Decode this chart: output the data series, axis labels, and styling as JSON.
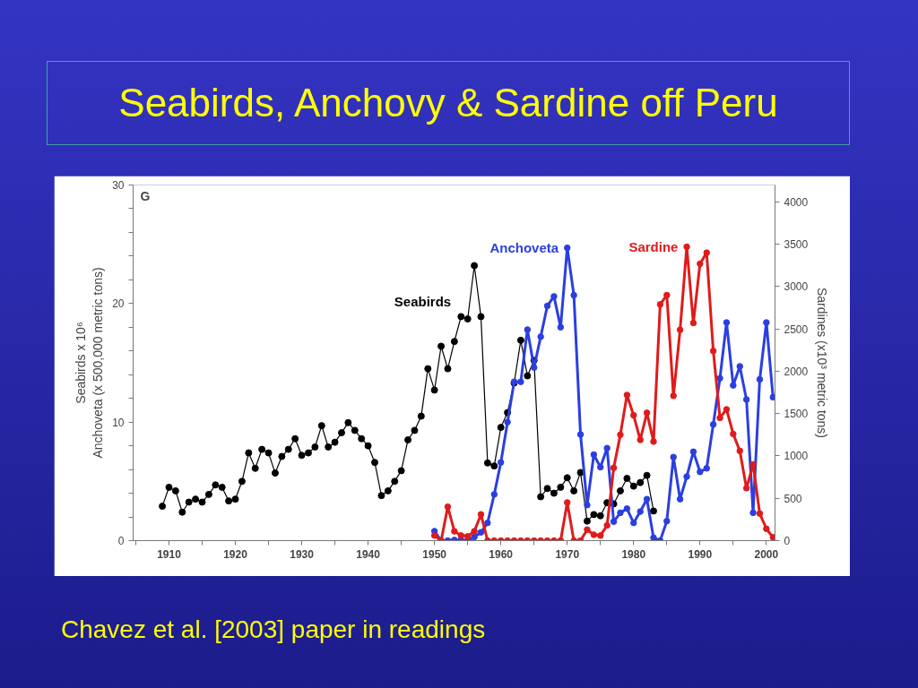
{
  "chart_data": {
    "type": "line",
    "title": "Seabirds, Anchovy & Sardine off Peru",
    "ylabel": "Seabirds x 10⁶\nAnchoveta (x 500,000 metric tons)",
    "y2label": "Sardines (x10³ metric tons)",
    "annotations": [
      "G",
      "Chavez et al. [2003] paper in readings"
    ],
    "xlim": [
      1904.6,
      2001.3
    ],
    "xticks": [
      {
        "value": 1905,
        "label": null
      },
      1910,
      {
        "value": 1915,
        "label": null
      },
      1920,
      {
        "value": 1925,
        "label": null
      },
      1930,
      {
        "value": 1935,
        "label": null
      },
      1940,
      {
        "value": 1945,
        "label": null
      },
      1950,
      {
        "value": 1955,
        "label": null
      },
      1960,
      {
        "value": 1965,
        "label": null
      },
      1970,
      {
        "value": 1975,
        "label": null
      },
      1980,
      {
        "value": 1985,
        "label": null
      },
      1990,
      {
        "value": 1995,
        "label": null
      },
      2000
    ],
    "ylim": [
      0,
      30
    ],
    "yticks": [
      0,
      {
        "value": 2,
        "label": null
      },
      {
        "value": 4,
        "label": null
      },
      {
        "value": 6,
        "label": null
      },
      {
        "value": 8,
        "label": null
      },
      10,
      {
        "value": 12,
        "label": null
      },
      {
        "value": 14,
        "label": null
      },
      {
        "value": 16,
        "label": null
      },
      {
        "value": 18,
        "label": null
      },
      20,
      {
        "value": 22,
        "label": null
      },
      {
        "value": 24,
        "label": null
      },
      {
        "value": 26,
        "label": null
      },
      {
        "value": 28,
        "label": null
      },
      30
    ],
    "y2lim": [
      0,
      4200
    ],
    "y2ticks": [
      0,
      500,
      1000,
      1500,
      2000,
      2500,
      3000,
      3500,
      4000
    ],
    "grid": false,
    "marker": "circle",
    "line_style": "solid",
    "series": [
      {
        "name": "Seabirds",
        "color": "#000000",
        "x": [
          1909,
          1910,
          1911,
          1912,
          1913,
          1914,
          1915,
          1916,
          1917,
          1918,
          1919,
          1920,
          1921,
          1922,
          1923,
          1924,
          1925,
          1926,
          1927,
          1928,
          1929,
          1930,
          1931,
          1932,
          1933,
          1934,
          1935,
          1936,
          1937,
          1938,
          1939,
          1940,
          1941,
          1942,
          1943,
          1944,
          1945,
          1946,
          1947,
          1948,
          1949,
          1950,
          1951,
          1952,
          1953,
          1954,
          1955,
          1956,
          1957,
          1958,
          1959,
          1960,
          1961,
          1962,
          1963,
          1964,
          1965,
          1966,
          1967,
          1968,
          1969,
          1970,
          1971,
          1972,
          1973,
          1974,
          1975,
          1976,
          1977,
          1978,
          1979,
          1980,
          1981,
          1982,
          1983
        ],
        "values": [
          2.9,
          4.5,
          4.2,
          2.4,
          3.25,
          3.5,
          3.25,
          3.9,
          4.7,
          4.5,
          3.35,
          3.5,
          5.0,
          7.4,
          6.1,
          7.7,
          7.4,
          5.7,
          7.1,
          7.7,
          8.6,
          7.2,
          7.4,
          7.9,
          9.7,
          7.9,
          8.3,
          9.1,
          9.95,
          9.3,
          8.6,
          8.0,
          6.6,
          3.8,
          4.2,
          5.0,
          5.9,
          8.5,
          9.3,
          10.5,
          14.5,
          12.7,
          16.4,
          14.5,
          16.8,
          18.9,
          18.7,
          23.2,
          18.9,
          6.55,
          6.3,
          9.55,
          10.8,
          13.3,
          16.9,
          13.9,
          15.2,
          3.7,
          4.4,
          4.0,
          4.5,
          5.3,
          4.2,
          5.75,
          1.65,
          2.2,
          2.1,
          3.2,
          3.1,
          4.2,
          5.25,
          4.6,
          4.9,
          5.5,
          2.5
        ]
      },
      {
        "name": "Anchoveta",
        "color": "#2b3fe0",
        "x": [
          1950,
          1951,
          1952,
          1953,
          1954,
          1955,
          1956,
          1957,
          1958,
          1959,
          1960,
          1961,
          1962,
          1963,
          1964,
          1965,
          1966,
          1967,
          1968,
          1969,
          1970,
          1971,
          1972,
          1973,
          1974,
          1975,
          1976,
          1977,
          1978,
          1979,
          1980,
          1981,
          1982,
          1983,
          1984,
          1985,
          1986,
          1987,
          1988,
          1989,
          1990,
          1991,
          1992,
          1993,
          1994,
          1995,
          1996,
          1997,
          1998,
          1999,
          2000,
          2001
        ],
        "values": [
          0.8,
          0,
          0,
          0.05,
          0.05,
          0,
          0.3,
          0.7,
          1.5,
          3.9,
          6.6,
          10.0,
          13.4,
          13.4,
          17.8,
          14.6,
          17.2,
          19.8,
          20.6,
          18.0,
          24.7,
          20.7,
          8.95,
          3.0,
          7.25,
          6.2,
          7.8,
          1.6,
          2.35,
          2.7,
          1.5,
          2.45,
          3.5,
          0.25,
          0,
          1.65,
          7.05,
          3.5,
          5.4,
          7.5,
          5.8,
          6.1,
          9.8,
          13.7,
          18.4,
          13.1,
          14.7,
          11.9,
          2.35,
          13.6,
          18.4,
          12.1
        ]
      },
      {
        "name": "Sardine",
        "color": "#e01b1b",
        "axis": "y2",
        "x": [
          1950,
          1951,
          1952,
          1953,
          1954,
          1955,
          1956,
          1957,
          1958,
          1959,
          1960,
          1961,
          1962,
          1963,
          1964,
          1965,
          1966,
          1967,
          1968,
          1969,
          1970,
          1971,
          1972,
          1973,
          1974,
          1975,
          1976,
          1977,
          1978,
          1979,
          1980,
          1981,
          1982,
          1983,
          1984,
          1985,
          1986,
          1987,
          1988,
          1989,
          1990,
          1991,
          1992,
          1993,
          1994,
          1995,
          1996,
          1997,
          1998,
          1999,
          2000,
          2001
        ],
        "values": [
          60,
          0,
          400,
          110,
          60,
          50,
          110,
          310,
          0,
          0,
          0,
          0,
          0,
          0,
          0,
          0,
          0,
          0,
          0,
          0,
          450,
          0,
          0,
          130,
          70,
          60,
          180,
          860,
          1250,
          1720,
          1480,
          1190,
          1510,
          1170,
          2790,
          2900,
          1710,
          2490,
          3470,
          2570,
          3270,
          3400,
          2240,
          1450,
          1550,
          1260,
          1060,
          620,
          900,
          320,
          140,
          40
        ]
      }
    ]
  }
}
